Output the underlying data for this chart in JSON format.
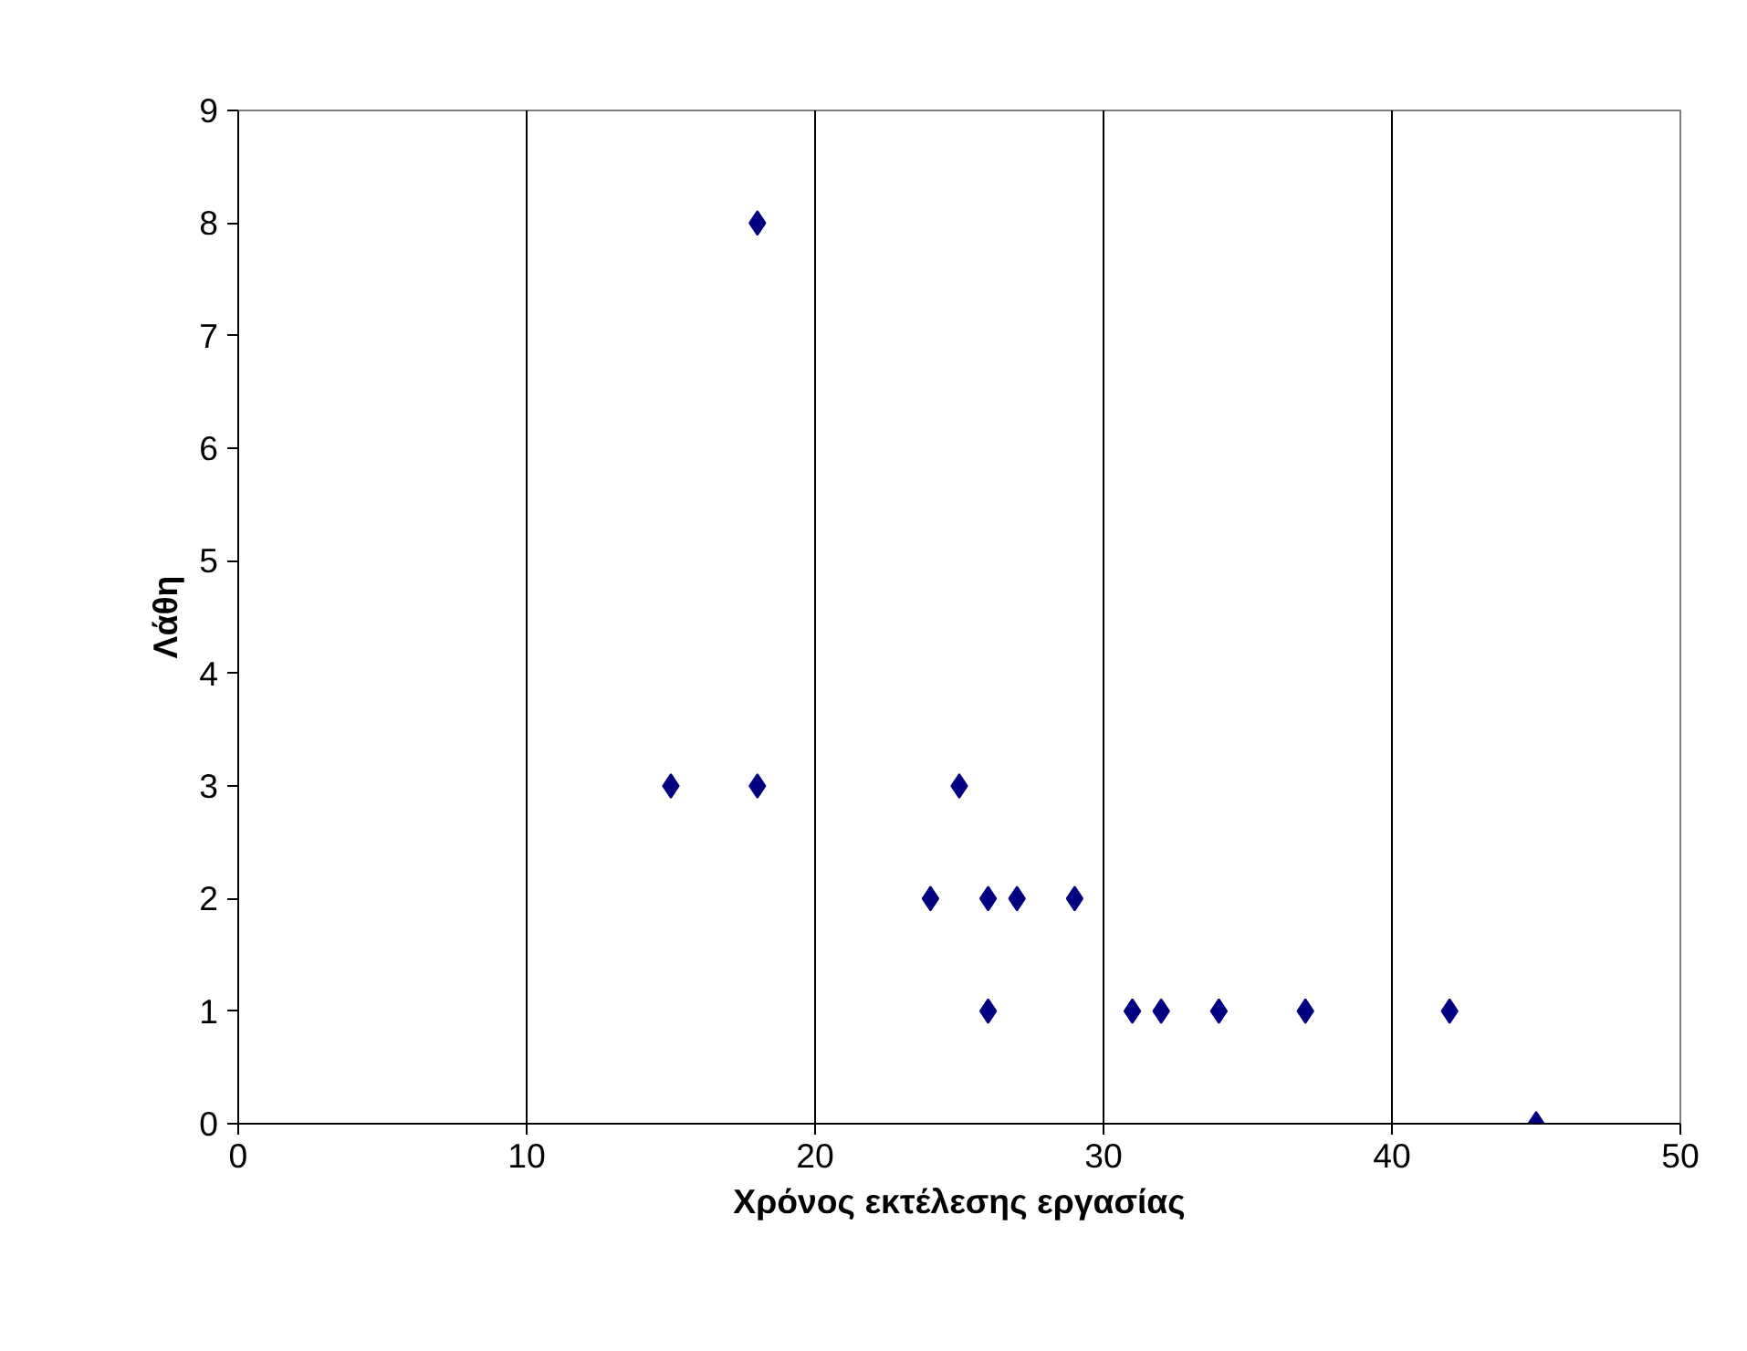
{
  "chart_data": {
    "type": "scatter",
    "xlabel": "Χρόνος εκτέλεσης εργασίας",
    "ylabel": "Λάθη",
    "x": [
      15,
      18,
      18,
      25,
      24,
      26,
      27,
      29,
      26,
      31,
      32,
      34,
      37,
      42,
      45
    ],
    "series": [
      {
        "color": "#000080",
        "values": [
          3,
          8,
          3,
          3,
          2,
          2,
          2,
          2,
          1,
          1,
          1,
          1,
          1,
          1,
          0
        ]
      }
    ],
    "xlim": [
      0,
      50
    ],
    "xticks": [
      0,
      10,
      20,
      30,
      40,
      50
    ],
    "ylim": [
      0,
      9
    ],
    "yticks": [
      0,
      1,
      2,
      3,
      4,
      5,
      6,
      7,
      8,
      9
    ],
    "grid": "x",
    "marker": "diamond"
  }
}
